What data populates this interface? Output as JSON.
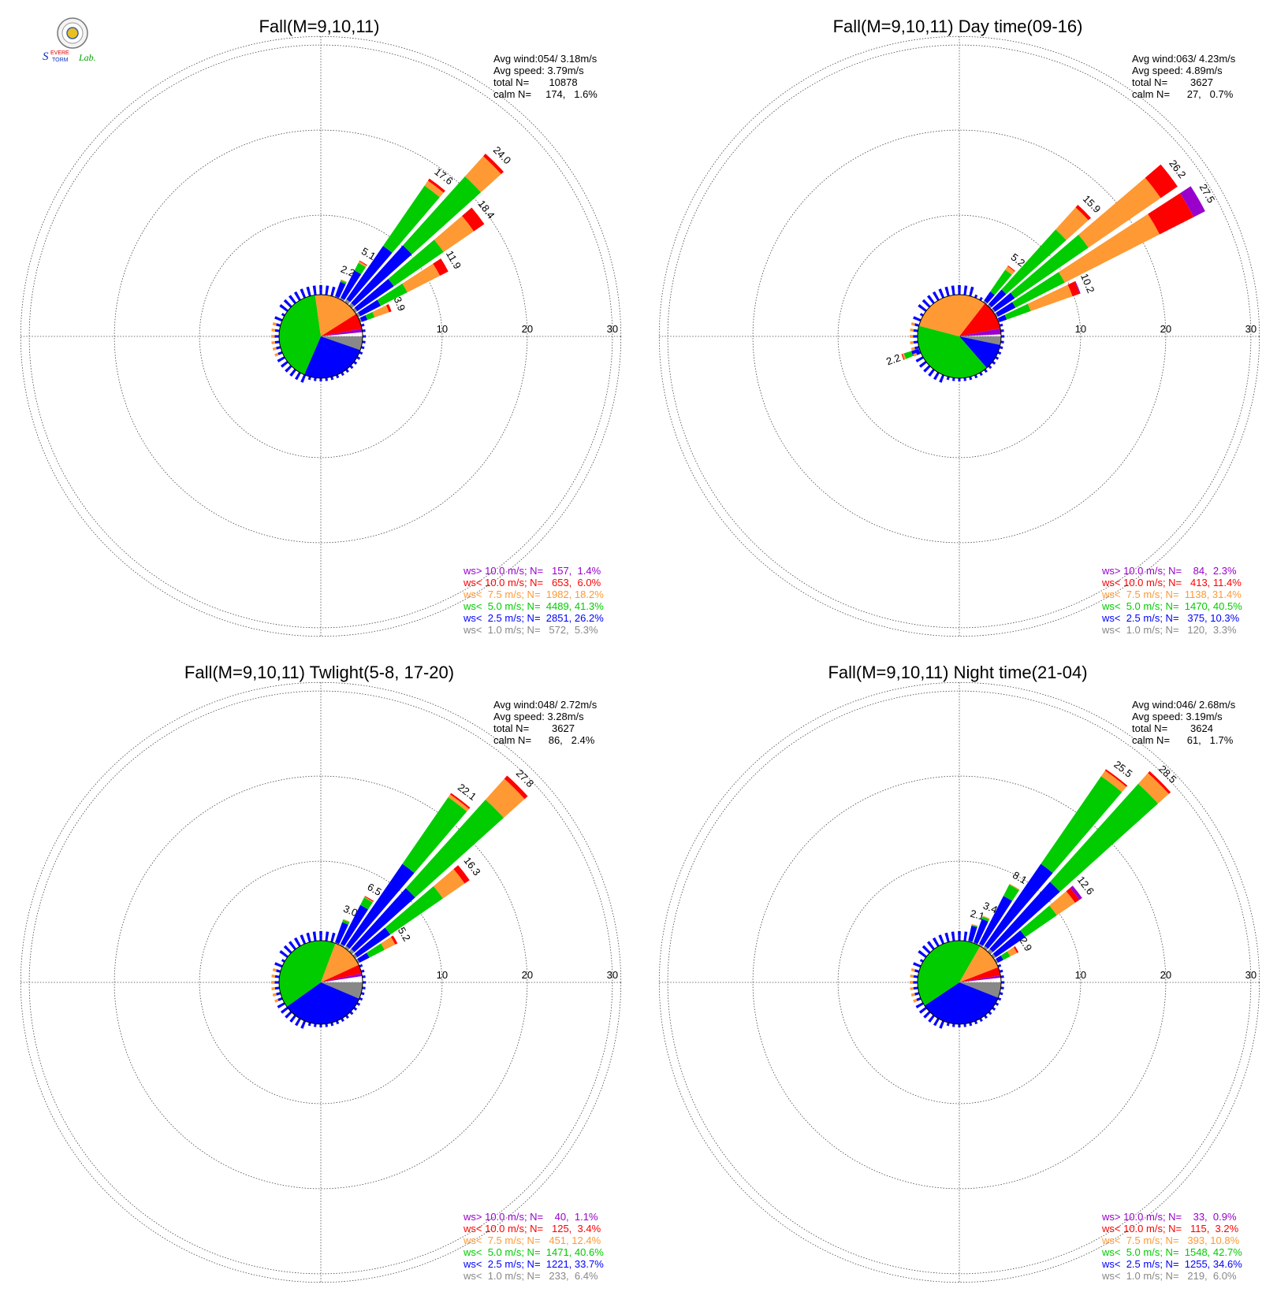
{
  "chart_data": [
    {
      "type": "polar-bar",
      "title": "Fall(M=9,10,11)",
      "stats": [
        "Avg wind:054/ 3.18m/s",
        "Avg speed: 3.79m/s",
        "total N=       10878",
        "calm N=     174,   1.6%"
      ],
      "rlim": [
        0,
        30
      ],
      "rings": [
        10,
        20,
        30
      ],
      "ring_labels": [
        "10",
        "20",
        "30"
      ],
      "legend": [
        {
          "text": "ws> 10.0 m/s; N=   157,  1.4%",
          "color": "#9900cc"
        },
        {
          "text": "ws< 10.0 m/s; N=   653,  6.0%",
          "color": "#ff0000"
        },
        {
          "text": "ws<  7.5 m/s; N=  1982, 18.2%",
          "color": "#ff9933"
        },
        {
          "text": "ws<  5.0 m/s; N=  4489, 41.3%",
          "color": "#00cc00"
        },
        {
          "text": "ws<  2.5 m/s; N=  2851, 26.2%",
          "color": "#0000ff"
        },
        {
          "text": "ws<  1.0 m/s; N=   572,  5.3%",
          "color": "#888888"
        }
      ],
      "pie_percent": [
        5.3,
        26.2,
        41.3,
        18.2,
        6.0,
        1.4
      ],
      "petals": [
        {
          "dir": 22.5,
          "total": 2.2,
          "cum": [
            0.1,
            1.9,
            2.1,
            2.2,
            2.2
          ]
        },
        {
          "dir": 30,
          "total": 5.1,
          "cum": [
            0.2,
            3.8,
            4.8,
            5.0,
            5.1
          ]
        },
        {
          "dir": 37.5,
          "total": 17.6,
          "cum": [
            0.4,
            8.0,
            16.6,
            17.3,
            17.6
          ]
        },
        {
          "dir": 45,
          "total": 24.0,
          "cum": [
            0.4,
            9.5,
            20.4,
            23.6,
            24.0
          ]
        },
        {
          "dir": 52.5,
          "total": 18.4,
          "cum": [
            0.3,
            5.5,
            12.6,
            16.9,
            18.4
          ]
        },
        {
          "dir": 60,
          "total": 11.9,
          "cum": [
            0.3,
            3.0,
            6.5,
            10.8,
            11.9
          ]
        },
        {
          "dir": 67.5,
          "total": 3.9,
          "cum": [
            0.2,
            0.9,
            1.8,
            3.6,
            3.9
          ]
        }
      ],
      "petal_labels": [
        "2.2",
        "5.1",
        "17.6",
        "24.0",
        "18.4",
        "11.9",
        "3.9"
      ]
    },
    {
      "type": "polar-bar",
      "title": "Fall(M=9,10,11) Day time(09-16)",
      "stats": [
        "Avg wind:063/ 4.23m/s",
        "Avg speed: 4.89m/s",
        "total N=        3627",
        "calm N=      27,   0.7%"
      ],
      "rlim": [
        0,
        30
      ],
      "rings": [
        10,
        20,
        30
      ],
      "ring_labels": [
        "10",
        "20",
        "30"
      ],
      "legend": [
        {
          "text": "ws> 10.0 m/s; N=    84,  2.3%",
          "color": "#9900cc"
        },
        {
          "text": "ws< 10.0 m/s; N=   413, 11.4%",
          "color": "#ff0000"
        },
        {
          "text": "ws<  7.5 m/s; N=  1138, 31.4%",
          "color": "#ff9933"
        },
        {
          "text": "ws<  5.0 m/s; N=  1470, 40.5%",
          "color": "#00cc00"
        },
        {
          "text": "ws<  2.5 m/s; N=   375, 10.3%",
          "color": "#0000ff"
        },
        {
          "text": "ws<  1.0 m/s; N=   120,  3.3%",
          "color": "#888888"
        }
      ],
      "pie_percent": [
        3.3,
        10.3,
        40.5,
        31.4,
        11.4,
        2.3
      ],
      "petals": [
        {
          "dir": 37.5,
          "total": 5.2,
          "cum": [
            0.2,
            1.5,
            4.6,
            5.1,
            5.2
          ]
        },
        {
          "dir": 45,
          "total": 15.9,
          "cum": [
            0.2,
            2.5,
            12.0,
            15.5,
            15.9
          ]
        },
        {
          "dir": 52.5,
          "total": 26.2,
          "cum": [
            0.2,
            3.0,
            13.5,
            23.8,
            26.2
          ]
        },
        {
          "dir": 60,
          "total": 27.5,
          "cum": [
            0.2,
            2.5,
            9.0,
            21.5,
            26.0
          ]
        },
        {
          "dir": 67.5,
          "total": 10.2,
          "cum": [
            0.1,
            1.0,
            4.0,
            9.2,
            10.1
          ]
        },
        {
          "dir": 250,
          "total": 2.2,
          "cum": [
            0.1,
            1.0,
            1.9,
            2.1,
            2.2
          ]
        }
      ],
      "petal_labels": [
        "5.2",
        "15.9",
        "26.2",
        "27.5",
        "10.2",
        "2.2"
      ]
    },
    {
      "type": "polar-bar",
      "title": "Fall(M=9,10,11) Twlight(5-8, 17-20)",
      "stats": [
        "Avg wind:048/ 2.72m/s",
        "Avg speed: 3.28m/s",
        "total N=        3627",
        "calm N=      86,   2.4%"
      ],
      "rlim": [
        0,
        30
      ],
      "rings": [
        10,
        20,
        30
      ],
      "ring_labels": [
        "10",
        "20",
        "30"
      ],
      "legend": [
        {
          "text": "ws> 10.0 m/s; N=    40,  1.1%",
          "color": "#9900cc"
        },
        {
          "text": "ws< 10.0 m/s; N=   125,  3.4%",
          "color": "#ff0000"
        },
        {
          "text": "ws<  7.5 m/s; N=   451, 12.4%",
          "color": "#ff9933"
        },
        {
          "text": "ws<  5.0 m/s; N=  1471, 40.6%",
          "color": "#00cc00"
        },
        {
          "text": "ws<  2.5 m/s; N=  1221, 33.7%",
          "color": "#0000ff"
        },
        {
          "text": "ws<  1.0 m/s; N=   233,  6.4%",
          "color": "#888888"
        }
      ],
      "pie_percent": [
        6.4,
        33.7,
        40.6,
        12.4,
        3.4,
        1.1
      ],
      "petals": [
        {
          "dir": 22.5,
          "total": 3.0,
          "cum": [
            0.1,
            2.6,
            2.9,
            3.0,
            3.0
          ]
        },
        {
          "dir": 30,
          "total": 6.5,
          "cum": [
            0.2,
            5.3,
            6.3,
            6.4,
            6.5
          ]
        },
        {
          "dir": 37.5,
          "total": 22.1,
          "cum": [
            0.3,
            12.0,
            21.5,
            21.9,
            22.1
          ]
        },
        {
          "dir": 45,
          "total": 27.8,
          "cum": [
            0.4,
            10.0,
            24.0,
            27.3,
            27.8
          ]
        },
        {
          "dir": 52.5,
          "total": 16.3,
          "cum": [
            0.3,
            5.0,
            12.5,
            15.6,
            16.3
          ]
        },
        {
          "dir": 60,
          "total": 5.2,
          "cum": [
            0.2,
            1.5,
            3.5,
            4.9,
            5.2
          ]
        }
      ],
      "petal_labels": [
        "3.0",
        "6.5",
        "22.1",
        "27.8",
        "16.3",
        "5.2"
      ]
    },
    {
      "type": "polar-bar",
      "title": "Fall(M=9,10,11) Night time(21-04)",
      "stats": [
        "Avg wind:046/ 2.68m/s",
        "Avg speed: 3.19m/s",
        "total N=        3624",
        "calm N=      61,   1.7%"
      ],
      "rlim": [
        0,
        30
      ],
      "rings": [
        10,
        20,
        30
      ],
      "ring_labels": [
        "10",
        "20",
        "30"
      ],
      "legend": [
        {
          "text": "ws> 10.0 m/s; N=    33,  0.9%",
          "color": "#9900cc"
        },
        {
          "text": "ws< 10.0 m/s; N=   115,  3.2%",
          "color": "#ff0000"
        },
        {
          "text": "ws<  7.5 m/s; N=   393, 10.8%",
          "color": "#ff9933"
        },
        {
          "text": "ws<  5.0 m/s; N=  1548, 42.7%",
          "color": "#00cc00"
        },
        {
          "text": "ws<  2.5 m/s; N=  1255, 34.6%",
          "color": "#0000ff"
        },
        {
          "text": "ws<  1.0 m/s; N=   219,  6.0%",
          "color": "#888888"
        }
      ],
      "pie_percent": [
        6.0,
        34.6,
        42.7,
        10.8,
        3.2,
        0.9
      ],
      "petals": [
        {
          "dir": 15,
          "total": 2.1,
          "cum": [
            0.1,
            1.9,
            2.0,
            2.1,
            2.1
          ]
        },
        {
          "dir": 22.5,
          "total": 3.4,
          "cum": [
            0.1,
            3.0,
            3.3,
            3.4,
            3.4
          ]
        },
        {
          "dir": 30,
          "total": 8.1,
          "cum": [
            0.2,
            6.5,
            8.0,
            8.1,
            8.1
          ]
        },
        {
          "dir": 37.5,
          "total": 25.5,
          "cum": [
            0.3,
            12.0,
            24.5,
            25.3,
            25.5
          ]
        },
        {
          "dir": 45,
          "total": 28.5,
          "cum": [
            0.4,
            11.0,
            26.5,
            28.2,
            28.5
          ]
        },
        {
          "dir": 52.5,
          "total": 12.6,
          "cum": [
            0.3,
            4.5,
            9.0,
            11.6,
            12.2
          ]
        },
        {
          "dir": 60,
          "total": 2.9,
          "cum": [
            0.2,
            0.9,
            1.8,
            2.7,
            2.9
          ]
        }
      ],
      "petal_labels": [
        "2.1",
        "3.4",
        "8.1",
        "25.5",
        "28.5",
        "12.6",
        "2.9"
      ]
    }
  ],
  "logo": {
    "lab_text": "Lab.",
    "word1": "EVERE",
    "word2": "TORM"
  }
}
